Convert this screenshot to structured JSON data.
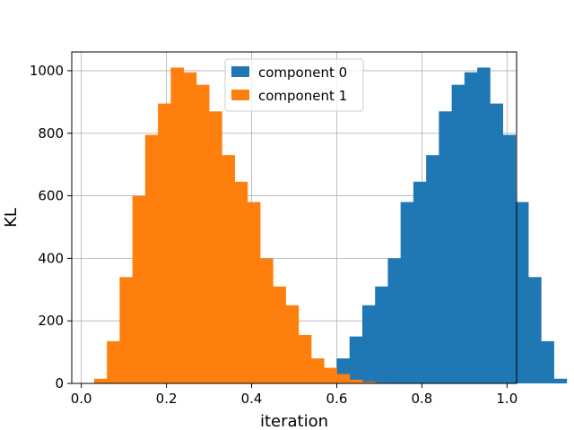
{
  "chart_data": {
    "type": "bar",
    "subtype": "histogram",
    "title": "",
    "xlabel": "iteration",
    "ylabel": "KL",
    "xlim": [
      -0.0225,
      1.0225
    ],
    "ylim": [
      0,
      1060
    ],
    "xticks": [
      0.0,
      0.2,
      0.4,
      0.6,
      0.8,
      1.0
    ],
    "xtick_labels": [
      "0.0",
      "0.2",
      "0.4",
      "0.6",
      "0.8",
      "1.0"
    ],
    "yticks": [
      0,
      200,
      400,
      600,
      800,
      1000
    ],
    "ytick_labels": [
      "0",
      "200",
      "400",
      "600",
      "800",
      "1000"
    ],
    "grid": true,
    "legend_position": "top-center",
    "bin_width": 0.03,
    "series": [
      {
        "name": "component 0",
        "color": "#1f77b4",
        "bin_start": 0.03,
        "values": [
          0,
          0,
          0,
          0,
          0,
          0,
          0,
          0,
          0,
          0,
          0,
          0,
          0,
          0,
          0,
          0,
          10,
          20,
          35,
          80,
          150,
          250,
          310,
          400,
          580,
          645,
          730,
          870,
          955,
          995,
          1010,
          895,
          795,
          580,
          340,
          135,
          15
        ]
      },
      {
        "name": "component 1",
        "color": "#ff7f0e",
        "bin_start": 0.03,
        "values": [
          15,
          135,
          340,
          600,
          795,
          895,
          1010,
          995,
          955,
          870,
          730,
          645,
          580,
          400,
          310,
          250,
          155,
          80,
          50,
          30,
          12,
          5,
          2,
          1,
          0,
          0,
          0,
          0,
          0,
          0,
          0,
          0,
          0,
          0,
          0,
          0,
          0
        ]
      }
    ]
  }
}
